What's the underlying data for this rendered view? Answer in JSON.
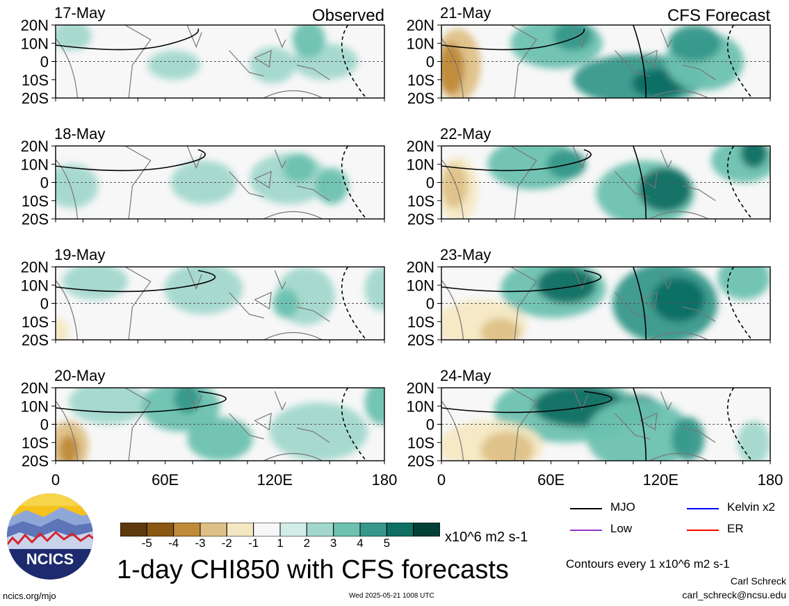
{
  "header": {
    "observed_label": "Observed",
    "forecast_label": "CFS Forecast"
  },
  "chart_data": [
    {
      "type": "heatmap",
      "date": "17-May",
      "column": "observed"
    },
    {
      "type": "heatmap",
      "date": "18-May",
      "column": "observed"
    },
    {
      "type": "heatmap",
      "date": "19-May",
      "column": "observed"
    },
    {
      "type": "heatmap",
      "date": "20-May",
      "column": "observed"
    },
    {
      "type": "heatmap",
      "date": "21-May",
      "column": "forecast"
    },
    {
      "type": "heatmap",
      "date": "22-May",
      "column": "forecast"
    },
    {
      "type": "heatmap",
      "date": "23-May",
      "column": "forecast"
    },
    {
      "type": "heatmap",
      "date": "24-May",
      "column": "forecast"
    }
  ],
  "axes": {
    "y_ticks": [
      "20N",
      "10N",
      "0",
      "10S",
      "20S"
    ],
    "y_values": [
      20,
      10,
      0,
      -10,
      -20
    ],
    "x_ticks": [
      "0",
      "60E",
      "120E",
      "180"
    ],
    "x_values": [
      0,
      60,
      120,
      180
    ]
  },
  "colorbar": {
    "labels": [
      "-5",
      "-4",
      "-3",
      "-2",
      "-1",
      "1",
      "2",
      "3",
      "4",
      "5"
    ],
    "colors": [
      "#5c3a0c",
      "#8c5712",
      "#c08a3a",
      "#dfc187",
      "#f4e8c3",
      "#f7f7f7",
      "#d2ede8",
      "#a2d8cc",
      "#6cc1b0",
      "#35988a",
      "#0e6f64",
      "#023f36"
    ],
    "units": "x10^6 m2 s-1"
  },
  "legend": {
    "mjo": {
      "label": "MJO",
      "color": "#000000"
    },
    "kelvin": {
      "label": "Kelvin x2",
      "color": "#0000ff"
    },
    "low": {
      "label": "Low",
      "color": "#9933cc"
    },
    "er": {
      "label": "ER",
      "color": "#ff0000"
    }
  },
  "footer": {
    "title": "1-day CHI850 with CFS forecasts",
    "contours_note": "Contours every 1 x10^6 m2 s-1",
    "author": "Carl Schreck",
    "email": "carl_schreck@ncsu.edu",
    "url": "ncics.org/mjo",
    "timestamp": "Wed 2025-05-21 1008 UTC",
    "logo_text": "NCICS"
  }
}
